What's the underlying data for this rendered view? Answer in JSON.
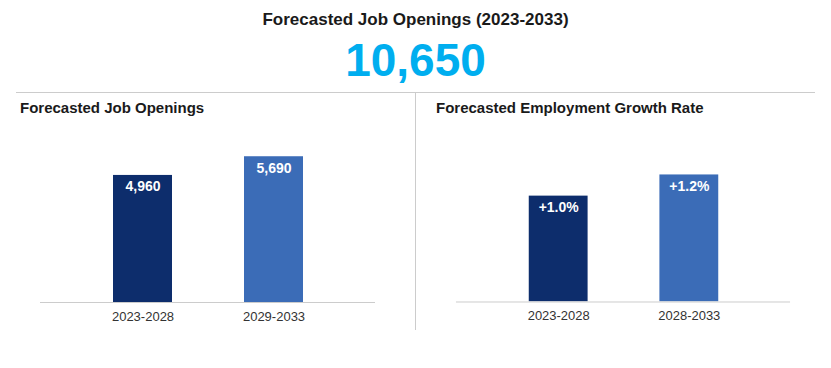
{
  "title": "Forecasted Job Openings (2023-2033)",
  "annotations": [
    {
      "text": "10,650",
      "color": "#00AEEF"
    }
  ],
  "chart_data": [
    {
      "type": "bar",
      "title": "Forecasted Job Openings",
      "categories": [
        "2023-2028",
        "2029-2033"
      ],
      "values": [
        4960,
        5690
      ],
      "value_labels": [
        "4,960",
        "5,690"
      ],
      "colors": [
        "#0D2D6C",
        "#3B6CB7"
      ],
      "ylim": [
        0,
        6714.2
      ],
      "data_labels": true,
      "tick_labels": "x",
      "grid": false
    },
    {
      "type": "bar",
      "title": "Forecasted Employment Growth Rate",
      "categories": [
        "2023-2028",
        "2028-2033"
      ],
      "values": [
        1.0,
        1.2
      ],
      "value_labels": [
        "+1.0%",
        "+1.2%"
      ],
      "colors": [
        "#0D2D6C",
        "#3B6CB7"
      ],
      "ylim": [
        0,
        1.62
      ],
      "data_labels": true,
      "tick_labels": "x",
      "grid": false
    }
  ]
}
